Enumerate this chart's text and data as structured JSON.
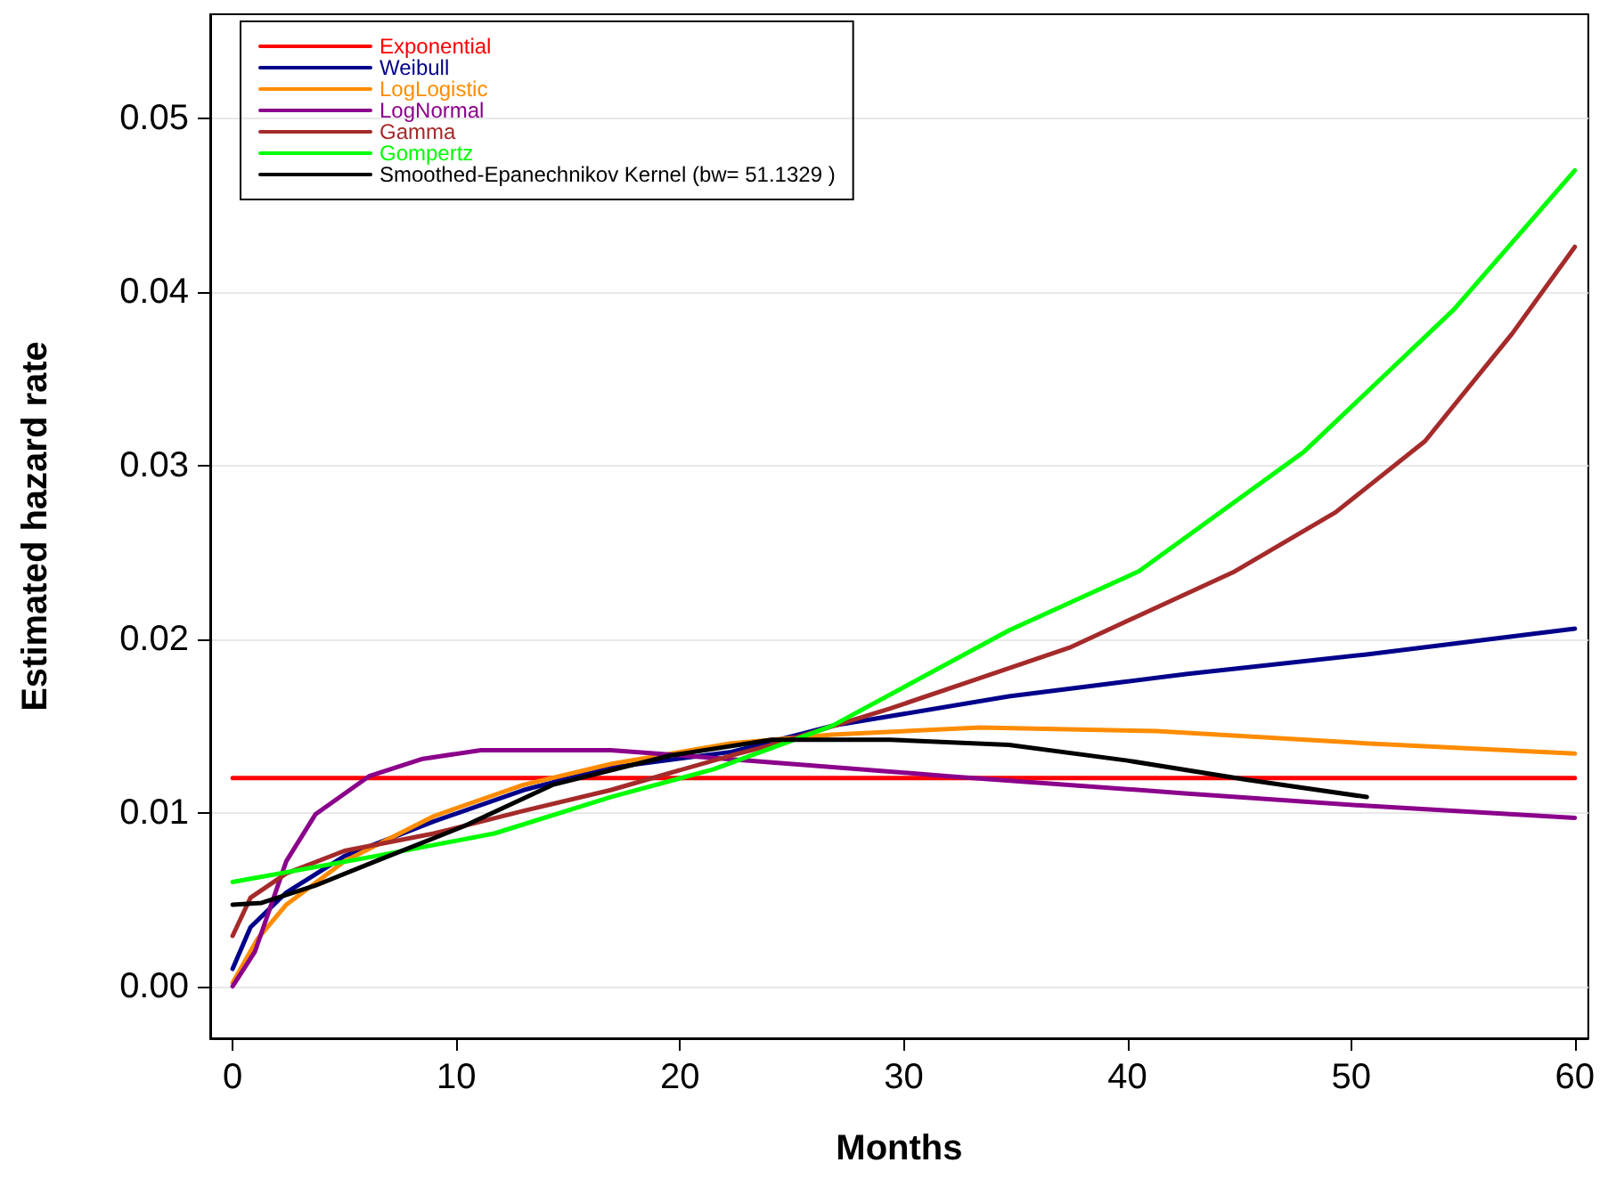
{
  "chart_data": {
    "type": "line",
    "xlabel": "Months",
    "ylabel": "Estimated hazard rate",
    "xlim": [
      -1,
      60.6
    ],
    "ylim": [
      -0.003,
      0.056
    ],
    "xticks": [
      0,
      10,
      20,
      30,
      40,
      50,
      60
    ],
    "yticks": [
      {
        "value": 0,
        "label": "0.00"
      },
      0.01,
      0.02,
      0.03,
      0.04,
      0.05
    ],
    "grid": "y",
    "legend": "top left",
    "marker": "none",
    "line_style": "solid",
    "series": [
      {
        "name": "Exponential",
        "color": "#ff0000",
        "x": [
          0,
          60
        ],
        "values": [
          0.012,
          0.012
        ]
      },
      {
        "name": "Weibull",
        "color": "#00008b",
        "x": [
          0,
          0.8,
          2.4,
          5,
          9,
          13,
          16.9,
          22.3,
          26.8,
          34.7,
          42.7,
          50.6,
          60
        ],
        "values": [
          0.001,
          0.0034,
          0.0054,
          0.0075,
          0.0095,
          0.0113,
          0.0126,
          0.0135,
          0.015,
          0.0167,
          0.018,
          0.0191,
          0.0206
        ]
      },
      {
        "name": "LogLogistic",
        "color": "#ff8c00",
        "x": [
          0,
          1.1,
          2.4,
          5,
          9,
          13,
          16.9,
          22.3,
          26.8,
          33.4,
          41.3,
          50.6,
          60
        ],
        "values": [
          0.0002,
          0.0027,
          0.0047,
          0.0072,
          0.0098,
          0.0116,
          0.0128,
          0.014,
          0.0145,
          0.0149,
          0.0147,
          0.014,
          0.0134
        ]
      },
      {
        "name": "LogNormal",
        "color": "#8b008b",
        "x": [
          0,
          1,
          2.4,
          3.7,
          6.1,
          8.5,
          11.1,
          16.9,
          23.1,
          32,
          42.7,
          50.6,
          60
        ],
        "values": [
          0,
          0.002,
          0.0072,
          0.0099,
          0.0121,
          0.0131,
          0.0136,
          0.0136,
          0.013,
          0.0121,
          0.0111,
          0.0104,
          0.0097
        ]
      },
      {
        "name": "Gamma",
        "color": "#a52a2a",
        "x": [
          0,
          0.8,
          2.4,
          5,
          9,
          13,
          16.9,
          22.3,
          24.1,
          29.4,
          37.4,
          44.8,
          49.3,
          53.3,
          57.2,
          60
        ],
        "values": [
          0.0029,
          0.0051,
          0.0065,
          0.0078,
          0.0088,
          0.0101,
          0.0113,
          0.0133,
          0.0139,
          0.016,
          0.0195,
          0.0239,
          0.0273,
          0.0314,
          0.0376,
          0.0426
        ]
      },
      {
        "name": "Gompertz",
        "color": "#00ff00",
        "x": [
          0,
          6.4,
          11.7,
          16.9,
          21.5,
          26.8,
          34.7,
          40.5,
          47.9,
          54.6,
          60
        ],
        "values": [
          0.006,
          0.0075,
          0.0088,
          0.0109,
          0.0125,
          0.015,
          0.0205,
          0.0239,
          0.0308,
          0.039,
          0.047
        ]
      },
      {
        "name": "Smoothed-Epanechnikov Kernel (bw= 51.1329 )",
        "color": "#000000",
        "x": [
          0,
          1.3,
          3.7,
          6.4,
          10.3,
          14.3,
          19.6,
          24.1,
          29.4,
          34.7,
          40,
          45.3,
          50.7
        ],
        "values": [
          0.0047,
          0.0048,
          0.0058,
          0.0072,
          0.0092,
          0.0116,
          0.0133,
          0.0142,
          0.0142,
          0.0139,
          0.013,
          0.0119,
          0.0109
        ]
      }
    ]
  }
}
